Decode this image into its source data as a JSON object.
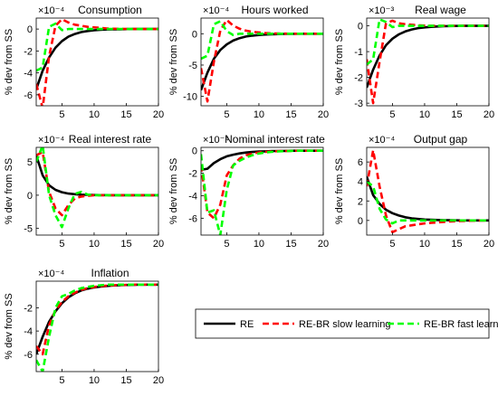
{
  "figure": {
    "legend": {
      "placement": "bottom-right",
      "entries": [
        {
          "label": "RE",
          "color": "#000000",
          "dash": "solid"
        },
        {
          "label": "RE-BR slow learning",
          "color": "#ff0000",
          "dash": "dashed"
        },
        {
          "label": "RE-BR fast learning",
          "color": "#00ff00",
          "dash": "dashed"
        }
      ]
    }
  },
  "chart_data": [
    {
      "type": "line",
      "title": "Consumption",
      "ylabel": "% dev from SS",
      "multiplier": "×10⁻⁴",
      "xlim": [
        1,
        20
      ],
      "ylim": [
        -7,
        1
      ],
      "xticks": [
        5,
        10,
        15,
        20
      ],
      "yticks": [
        -6,
        -4,
        -2,
        0
      ],
      "x": [
        1,
        2,
        3,
        4,
        5,
        6,
        7,
        8,
        9,
        10,
        11,
        12,
        13,
        14,
        15,
        16,
        17,
        18,
        19,
        20
      ],
      "series": [
        {
          "name": "RE",
          "color": "#000000",
          "values": [
            -5.5,
            -3.8,
            -2.6,
            -1.7,
            -1.1,
            -0.7,
            -0.45,
            -0.28,
            -0.18,
            -0.11,
            -0.07,
            -0.04,
            -0.03,
            -0.02,
            -0.01,
            0,
            0,
            0,
            0,
            0
          ]
        },
        {
          "name": "RE-BR slow learning",
          "color": "#ff0000",
          "values": [
            -5.0,
            -7.2,
            -2.5,
            0.3,
            0.9,
            0.6,
            0.4,
            0.3,
            0.2,
            0.15,
            0.1,
            0.05,
            0.03,
            0.02,
            0.01,
            0,
            0,
            0,
            0,
            0
          ]
        },
        {
          "name": "RE-BR fast learning",
          "color": "#00ff00",
          "values": [
            -3.8,
            -3.5,
            0.2,
            0.5,
            -0.1,
            0,
            0,
            0,
            0,
            0,
            0,
            0,
            0,
            0,
            0,
            0,
            0,
            0,
            0,
            0
          ]
        }
      ]
    },
    {
      "type": "line",
      "title": "Hours worked",
      "ylabel": "% dev from SS",
      "multiplier": "×10⁻⁴",
      "xlim": [
        1,
        20
      ],
      "ylim": [
        -11.5,
        2.5
      ],
      "xticks": [
        5,
        10,
        15,
        20
      ],
      "yticks": [
        -10,
        -5,
        0
      ],
      "x": [
        1,
        2,
        3,
        4,
        5,
        6,
        7,
        8,
        9,
        10,
        11,
        12,
        13,
        14,
        15,
        16,
        17,
        18,
        19,
        20
      ],
      "series": [
        {
          "name": "RE",
          "color": "#000000",
          "values": [
            -9.0,
            -6.2,
            -4.0,
            -2.6,
            -1.7,
            -1.1,
            -0.7,
            -0.45,
            -0.3,
            -0.2,
            -0.12,
            -0.08,
            -0.05,
            -0.03,
            -0.02,
            0,
            0,
            0,
            0,
            0
          ]
        },
        {
          "name": "RE-BR slow learning",
          "color": "#ff0000",
          "values": [
            -5.5,
            -10.8,
            -4.5,
            0.5,
            2.2,
            1.3,
            0.8,
            0.5,
            0.3,
            0.2,
            0.1,
            0.05,
            0.03,
            0.02,
            0,
            0,
            0,
            0,
            0,
            0
          ]
        },
        {
          "name": "RE-BR fast learning",
          "color": "#00ff00",
          "values": [
            -4.0,
            -3.5,
            1.5,
            2.0,
            0.4,
            -0.2,
            0,
            0,
            0,
            0,
            0,
            0,
            0,
            0,
            0,
            0,
            0,
            0,
            0,
            0
          ]
        }
      ]
    },
    {
      "type": "line",
      "title": "Real wage",
      "ylabel": "% dev from SS",
      "multiplier": "×10⁻³",
      "xlim": [
        1,
        20
      ],
      "ylim": [
        -3.1,
        0.3
      ],
      "xticks": [
        5,
        10,
        15,
        20
      ],
      "yticks": [
        -3,
        -2,
        -1,
        0
      ],
      "x": [
        1,
        2,
        3,
        4,
        5,
        6,
        7,
        8,
        9,
        10,
        11,
        12,
        13,
        14,
        15,
        16,
        17,
        18,
        19,
        20
      ],
      "series": [
        {
          "name": "RE",
          "color": "#000000",
          "values": [
            -2.4,
            -1.7,
            -1.15,
            -0.75,
            -0.5,
            -0.33,
            -0.22,
            -0.14,
            -0.09,
            -0.06,
            -0.04,
            -0.025,
            -0.015,
            -0.01,
            -0.005,
            0,
            0,
            0,
            0,
            0
          ]
        },
        {
          "name": "RE-BR slow learning",
          "color": "#ff0000",
          "values": [
            -1.3,
            -3.0,
            -1.4,
            0.1,
            0.2,
            0.1,
            0.06,
            0.04,
            0.02,
            0.01,
            0,
            0,
            0,
            0,
            0,
            0,
            0,
            0,
            0,
            0
          ]
        },
        {
          "name": "RE-BR fast learning",
          "color": "#00ff00",
          "values": [
            -1.5,
            -1.3,
            0.25,
            0.15,
            -0.05,
            0,
            0,
            0,
            0,
            0,
            0,
            0,
            0,
            0,
            0,
            0,
            0,
            0,
            0,
            0
          ]
        }
      ]
    },
    {
      "type": "line",
      "title": "Real interest rate",
      "ylabel": "% dev from SS",
      "multiplier": "×10⁻⁴",
      "xlim": [
        1,
        20
      ],
      "ylim": [
        -6,
        7.2
      ],
      "xticks": [
        5,
        10,
        15,
        20
      ],
      "yticks": [
        -5,
        0,
        5
      ],
      "x": [
        1,
        2,
        3,
        4,
        5,
        6,
        7,
        8,
        9,
        10,
        11,
        12,
        13,
        14,
        15,
        16,
        17,
        18,
        19,
        20
      ],
      "series": [
        {
          "name": "RE",
          "color": "#000000",
          "values": [
            6.0,
            3.0,
            1.5,
            0.8,
            0.45,
            0.25,
            0.15,
            0.08,
            0.05,
            0.03,
            0.02,
            0.01,
            0,
            0,
            0,
            0,
            0,
            0,
            0,
            0
          ]
        },
        {
          "name": "RE-BR slow learning",
          "color": "#ff0000",
          "values": [
            6.0,
            6.5,
            0.5,
            -2.0,
            -3.0,
            -1.5,
            -0.5,
            -0.2,
            -0.1,
            0,
            0,
            0,
            0,
            0,
            0,
            0,
            0,
            0,
            0,
            0
          ]
        },
        {
          "name": "RE-BR fast learning",
          "color": "#00ff00",
          "values": [
            5.0,
            7.5,
            0.0,
            -3.0,
            -4.8,
            -2.0,
            0.2,
            0.5,
            0.1,
            0,
            0,
            0,
            0,
            0,
            0,
            0,
            0,
            0,
            0,
            0
          ]
        }
      ]
    },
    {
      "type": "line",
      "title": "Nominal interest rate",
      "ylabel": "% dev from SS",
      "multiplier": "×10⁻⁴",
      "xlim": [
        1,
        20
      ],
      "ylim": [
        -7.5,
        0.3
      ],
      "xticks": [
        5,
        10,
        15,
        20
      ],
      "yticks": [
        -6,
        -4,
        -2,
        0
      ],
      "x": [
        1,
        2,
        3,
        4,
        5,
        6,
        7,
        8,
        9,
        10,
        11,
        12,
        13,
        14,
        15,
        16,
        17,
        18,
        19,
        20
      ],
      "series": [
        {
          "name": "RE",
          "color": "#000000",
          "values": [
            -1.7,
            -1.6,
            -1.1,
            -0.75,
            -0.5,
            -0.35,
            -0.24,
            -0.16,
            -0.11,
            -0.07,
            -0.05,
            -0.03,
            -0.02,
            -0.01,
            0,
            0,
            0,
            0,
            0,
            0
          ]
        },
        {
          "name": "RE-BR slow learning",
          "color": "#ff0000",
          "values": [
            -1.3,
            -5.5,
            -6.0,
            -4.8,
            -2.2,
            -1.3,
            -0.7,
            -0.4,
            -0.25,
            -0.15,
            -0.1,
            -0.06,
            -0.04,
            -0.02,
            -0.01,
            0,
            0,
            0,
            0,
            0
          ]
        },
        {
          "name": "RE-BR fast learning",
          "color": "#00ff00",
          "values": [
            -0.3,
            -5.5,
            -5.3,
            -7.5,
            -3.5,
            -1.3,
            -0.9,
            -0.6,
            -0.4,
            -0.25,
            -0.15,
            -0.1,
            -0.06,
            -0.03,
            -0.01,
            0,
            0,
            0,
            0,
            0
          ]
        }
      ]
    },
    {
      "type": "line",
      "title": "Output gap",
      "ylabel": "% dev from SS",
      "multiplier": "×10⁻⁴",
      "xlim": [
        1,
        20
      ],
      "ylim": [
        -1.5,
        7.5
      ],
      "xticks": [
        5,
        10,
        15,
        20
      ],
      "yticks": [
        0,
        2,
        4,
        6
      ],
      "x": [
        1,
        2,
        3,
        4,
        5,
        6,
        7,
        8,
        9,
        10,
        11,
        12,
        13,
        14,
        15,
        16,
        17,
        18,
        19,
        20
      ],
      "series": [
        {
          "name": "RE",
          "color": "#000000",
          "values": [
            4.5,
            2.6,
            1.7,
            1.1,
            0.75,
            0.5,
            0.33,
            0.22,
            0.15,
            0.1,
            0.07,
            0.05,
            0.03,
            0.02,
            0.01,
            0,
            0,
            0,
            0,
            0
          ]
        },
        {
          "name": "RE-BR slow learning",
          "color": "#ff0000",
          "values": [
            3.5,
            7.2,
            3.5,
            0.5,
            -1.2,
            -0.9,
            -0.6,
            -0.5,
            -0.4,
            -0.3,
            -0.25,
            -0.2,
            -0.15,
            -0.1,
            -0.07,
            -0.05,
            -0.03,
            -0.02,
            -0.01,
            0
          ]
        },
        {
          "name": "RE-BR fast learning",
          "color": "#00ff00",
          "values": [
            4.0,
            3.5,
            1.2,
            0.1,
            -0.3,
            0,
            0,
            0,
            0,
            0,
            0,
            0,
            0,
            0,
            0,
            0,
            0,
            0,
            0,
            0
          ]
        }
      ]
    },
    {
      "type": "line",
      "title": "Inflation",
      "ylabel": "% dev from SS",
      "multiplier": "×10⁻⁴",
      "xlim": [
        1,
        20
      ],
      "ylim": [
        -7.5,
        0.3
      ],
      "xticks": [
        5,
        10,
        15,
        20
      ],
      "yticks": [
        -6,
        -4,
        -2
      ],
      "x": [
        1,
        2,
        3,
        4,
        5,
        6,
        7,
        8,
        9,
        10,
        11,
        12,
        13,
        14,
        15,
        16,
        17,
        18,
        19,
        20
      ],
      "series": [
        {
          "name": "RE",
          "color": "#000000",
          "values": [
            -6.0,
            -4.5,
            -3.2,
            -2.3,
            -1.6,
            -1.1,
            -0.75,
            -0.5,
            -0.35,
            -0.24,
            -0.16,
            -0.11,
            -0.07,
            -0.05,
            -0.03,
            -0.02,
            0,
            0,
            0,
            0
          ]
        },
        {
          "name": "RE-BR slow learning",
          "color": "#ff0000",
          "values": [
            -5.3,
            -6.0,
            -3.5,
            -2.2,
            -1.5,
            -1.0,
            -0.7,
            -0.45,
            -0.3,
            -0.2,
            -0.13,
            -0.08,
            -0.05,
            -0.03,
            -0.02,
            0,
            0,
            0,
            0,
            0
          ]
        },
        {
          "name": "RE-BR fast learning",
          "color": "#00ff00",
          "values": [
            -6.5,
            -7.5,
            -4.5,
            -2.0,
            -1.0,
            -0.8,
            -0.5,
            -0.3,
            -0.2,
            -0.1,
            -0.05,
            0,
            0,
            0,
            0,
            0,
            0,
            0,
            0,
            0
          ]
        }
      ]
    }
  ]
}
